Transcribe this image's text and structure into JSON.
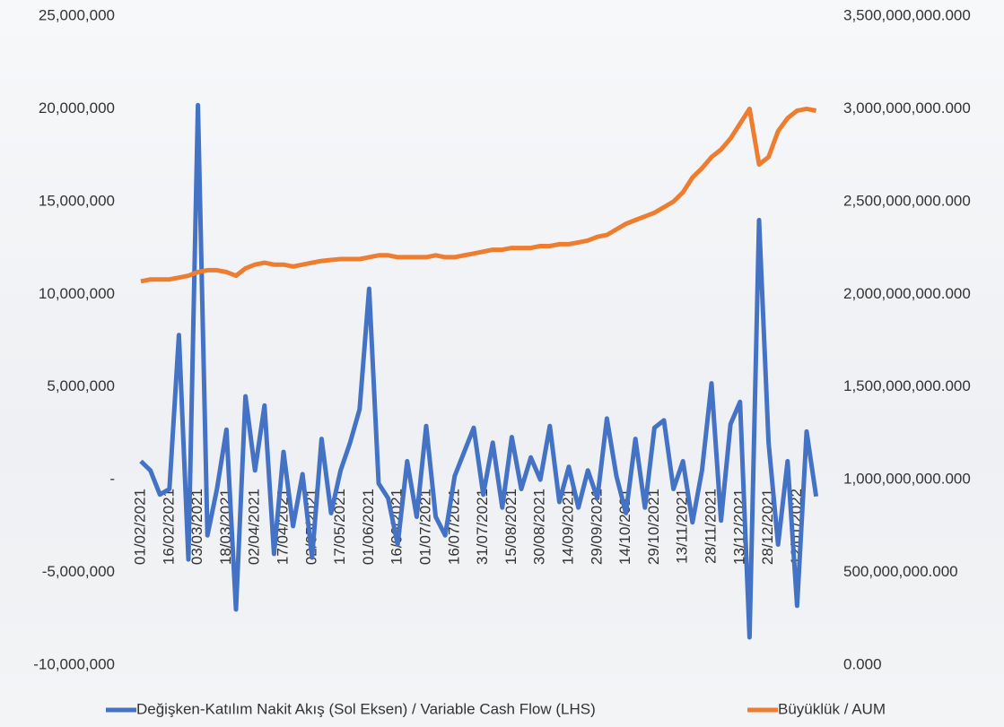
{
  "chart_data": {
    "type": "line",
    "categories": [
      "01/02/2021",
      null,
      null,
      "16/02/2021",
      null,
      null,
      "03/03/2021",
      null,
      null,
      "18/03/2021",
      null,
      null,
      "02/04/2021",
      null,
      null,
      "17/04/2021",
      null,
      null,
      "02/05/2021",
      null,
      null,
      "17/05/2021",
      null,
      null,
      "01/06/2021",
      null,
      null,
      "16/06/2021",
      null,
      null,
      "01/07/2021",
      null,
      null,
      "16/07/2021",
      null,
      null,
      "31/07/2021",
      null,
      null,
      "15/08/2021",
      null,
      null,
      "30/08/2021",
      null,
      null,
      "14/09/2021",
      null,
      null,
      "29/09/2021",
      null,
      null,
      "14/10/2021",
      null,
      null,
      "29/10/2021",
      null,
      null,
      "13/11/2021",
      null,
      null,
      "28/11/2021",
      null,
      null,
      "13/12/2021",
      null,
      null,
      "28/12/2021",
      null,
      null,
      "12/01/2022",
      null,
      null
    ],
    "series": [
      {
        "name": "Değişken-Katılım Nakit Akış (Sol Eksen) / Variable Cash Flow (LHS)",
        "color": "#4472c4",
        "axis": "y",
        "values": [
          1000000,
          500000,
          -800000,
          -500000,
          7800000,
          -4300000,
          20200000,
          -3000000,
          -500000,
          2700000,
          -7000000,
          4500000,
          500000,
          4000000,
          -4000000,
          1500000,
          -2500000,
          300000,
          -4200000,
          2200000,
          -1800000,
          500000,
          2000000,
          3800000,
          10300000,
          -200000,
          -1000000,
          -3500000,
          1000000,
          -2000000,
          2900000,
          -2000000,
          -3000000,
          200000,
          1500000,
          2800000,
          -800000,
          2000000,
          -1500000,
          2300000,
          -500000,
          1200000,
          0,
          2900000,
          -1200000,
          700000,
          -1500000,
          500000,
          -1000000,
          3300000,
          200000,
          -1800000,
          2200000,
          -1500000,
          2800000,
          3200000,
          -500000,
          1000000,
          -2300000,
          500000,
          5200000,
          -2200000,
          3000000,
          4200000,
          -8500000,
          14000000,
          2000000,
          -3500000,
          1000000,
          -6800000,
          2600000,
          -900000
        ]
      },
      {
        "name": "Büyüklük / AUM",
        "color": "#ed7d31",
        "axis": "y2",
        "values": [
          2070000000000,
          2080000000000,
          2080000000000,
          2080000000000,
          2090000000000,
          2100000000000,
          2120000000000,
          2130000000000,
          2130000000000,
          2120000000000,
          2100000000000,
          2140000000000,
          2160000000000,
          2170000000000,
          2160000000000,
          2160000000000,
          2150000000000,
          2160000000000,
          2170000000000,
          2180000000000,
          2185000000000,
          2190000000000,
          2190000000000,
          2190000000000,
          2200000000000,
          2210000000000,
          2210000000000,
          2200000000000,
          2200000000000,
          2200000000000,
          2200000000000,
          2210000000000,
          2200000000000,
          2200000000000,
          2210000000000,
          2220000000000,
          2230000000000,
          2240000000000,
          2240000000000,
          2250000000000,
          2250000000000,
          2250000000000,
          2260000000000,
          2260000000000,
          2270000000000,
          2270000000000,
          2280000000000,
          2290000000000,
          2310000000000,
          2320000000000,
          2350000000000,
          2380000000000,
          2400000000000,
          2420000000000,
          2440000000000,
          2470000000000,
          2500000000000,
          2550000000000,
          2630000000000,
          2680000000000,
          2740000000000,
          2780000000000,
          2840000000000,
          2920000000000,
          3000000000000,
          2700000000000,
          2740000000000,
          2880000000000,
          2950000000000,
          2990000000000,
          3000000000000,
          2990000000000
        ]
      }
    ],
    "ylim": [
      -10000000,
      25000000
    ],
    "yticks": [
      {
        "value": -10000000,
        "label": "-10,000,000"
      },
      {
        "value": -5000000,
        "label": "-5,000,000"
      },
      {
        "value": 0,
        "label": "-"
      },
      {
        "value": 5000000,
        "label": "5,000,000"
      },
      {
        "value": 10000000,
        "label": "10,000,000"
      },
      {
        "value": 15000000,
        "label": "15,000,000"
      },
      {
        "value": 20000000,
        "label": "20,000,000"
      },
      {
        "value": 25000000,
        "label": "25,000,000"
      }
    ],
    "y2lim": [
      0,
      3500000000000
    ],
    "y2ticks": [
      {
        "value": 0,
        "label": "0.000"
      },
      {
        "value": 500000000000,
        "label": "500,000,000.000"
      },
      {
        "value": 1000000000000,
        "label": "1,000,000,000.000"
      },
      {
        "value": 1500000000000,
        "label": "1,500,000,000.000"
      },
      {
        "value": 2000000000000,
        "label": "2,000,000,000.000"
      },
      {
        "value": 2500000000000,
        "label": "2,500,000,000.000"
      },
      {
        "value": 3000000000000,
        "label": "3,000,000,000.000"
      },
      {
        "value": 3500000000000,
        "label": "3,500,000,000.000"
      }
    ],
    "grid": false,
    "legend": "bottom"
  }
}
